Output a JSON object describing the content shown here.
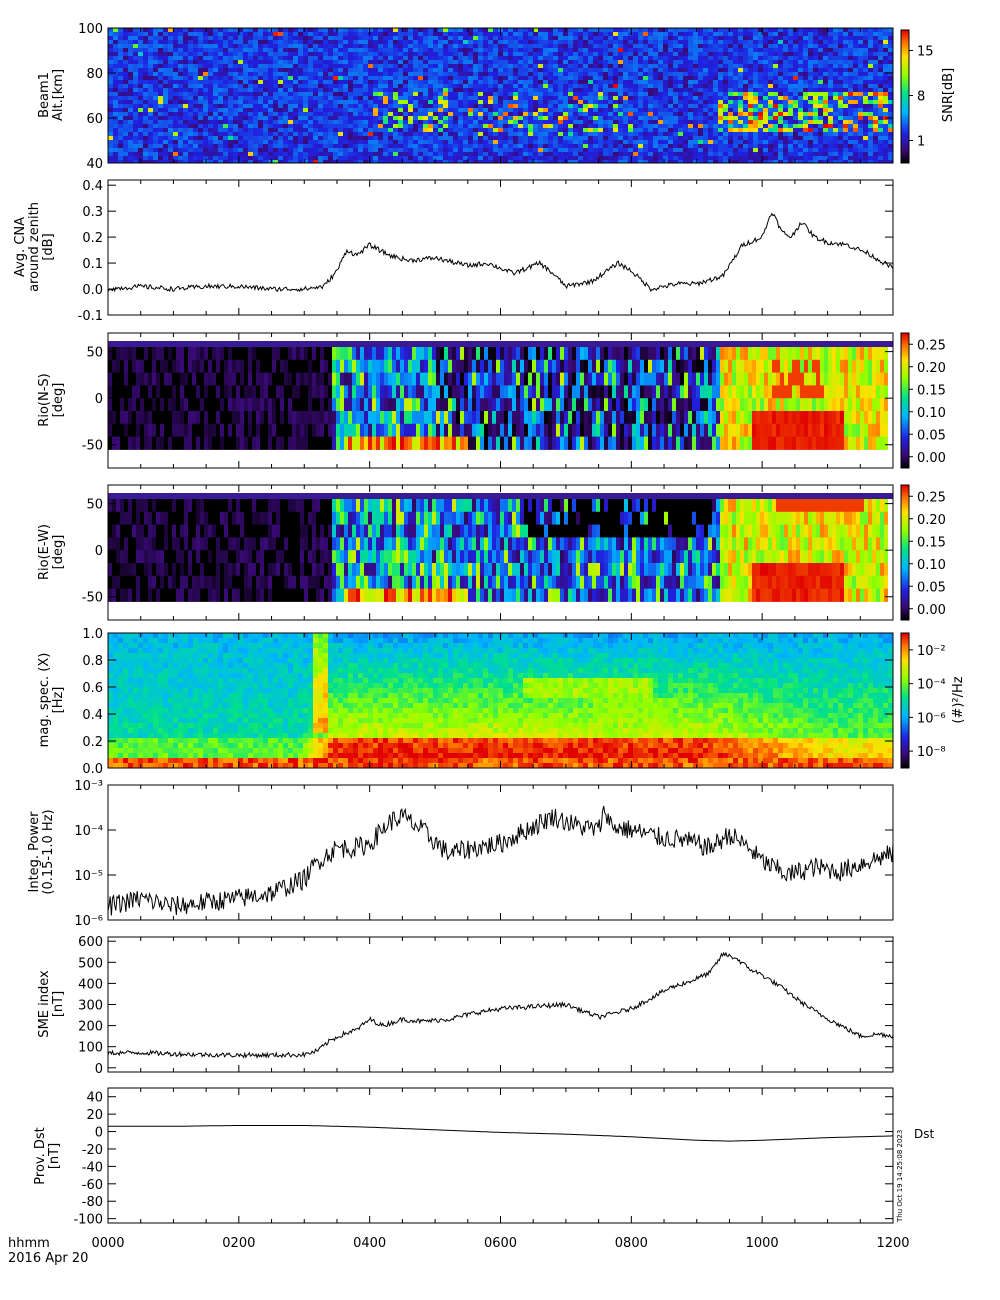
{
  "figure": {
    "time_label": "hhmm",
    "date_label": "2016 Apr 20",
    "stamp": "Thu Oct 19 14:25:08 2023",
    "x_ticks": [
      "0000",
      "0200",
      "0400",
      "0600",
      "0800",
      "1000",
      "1200"
    ],
    "x_range_hours": [
      0,
      12
    ]
  },
  "chart_data": [
    {
      "id": "beam1",
      "type": "heatmap",
      "ylabel_lines": [
        "Beam1",
        "Alt.[km]"
      ],
      "ylim": [
        40,
        100
      ],
      "yticks": [
        40,
        60,
        80,
        100
      ],
      "colorbar": {
        "label": "SNR[dB]",
        "ticks": [
          "1",
          "8",
          "15"
        ],
        "range": [
          1,
          15
        ]
      },
      "colors": {
        "background": "#2a2ab0"
      }
    },
    {
      "id": "cna",
      "type": "line",
      "ylabel_lines": [
        "Avg. CNA",
        "around zenith",
        "[dB]"
      ],
      "ylim": [
        -0.1,
        0.42
      ],
      "yticks": [
        "-0.1",
        "0.0",
        "0.1",
        "0.2",
        "0.3",
        "0.4"
      ],
      "x": [
        0,
        0.5,
        1,
        1.5,
        2,
        2.5,
        3,
        3.3,
        3.5,
        3.65,
        3.8,
        4.0,
        4.3,
        4.6,
        5.0,
        5.5,
        5.8,
        6.2,
        6.6,
        6.8,
        7.0,
        7.4,
        7.8,
        8.0,
        8.3,
        8.7,
        9.0,
        9.4,
        9.7,
        10.0,
        10.15,
        10.3,
        10.45,
        10.6,
        10.8,
        11.0,
        11.3,
        11.6,
        11.8,
        12.0
      ],
      "values": [
        0.0,
        0.01,
        0.0,
        0.01,
        0.01,
        0.0,
        0.0,
        0.01,
        0.07,
        0.15,
        0.13,
        0.17,
        0.13,
        0.11,
        0.12,
        0.09,
        0.1,
        0.06,
        0.1,
        0.06,
        0.01,
        0.03,
        0.1,
        0.07,
        0.0,
        0.02,
        0.02,
        0.05,
        0.17,
        0.2,
        0.3,
        0.22,
        0.2,
        0.26,
        0.2,
        0.18,
        0.17,
        0.14,
        0.11,
        0.08
      ]
    },
    {
      "id": "rio_ns",
      "type": "heatmap",
      "ylabel_lines": [
        "Rio(N-S)",
        "[deg]"
      ],
      "ylim": [
        -75,
        70
      ],
      "yticks": [
        "-50",
        "0",
        "50"
      ],
      "colorbar": {
        "ticks": [
          "0.00",
          "0.05",
          "0.10",
          "0.15",
          "0.20",
          "0.25"
        ],
        "range": [
          0,
          0.29
        ]
      }
    },
    {
      "id": "rio_ew",
      "type": "heatmap",
      "ylabel_lines": [
        "Rio(E-W)",
        "[deg]"
      ],
      "ylim": [
        -75,
        70
      ],
      "yticks": [
        "-50",
        "0",
        "50"
      ],
      "colorbar": {
        "ticks": [
          "0.00",
          "0.05",
          "0.10",
          "0.15",
          "0.20",
          "0.25"
        ],
        "range": [
          0,
          0.29
        ]
      }
    },
    {
      "id": "mag_spec",
      "type": "heatmap",
      "ylabel_lines": [
        "mag. spec. (X)",
        "[Hz]"
      ],
      "ylim": [
        0,
        1.0
      ],
      "yticks": [
        "0.0",
        "0.2",
        "0.4",
        "0.6",
        "0.8",
        "1.0"
      ],
      "colorbar": {
        "label": "(#)²/Hz",
        "ticks": [
          "10⁻⁸",
          "10⁻⁶",
          "10⁻⁴",
          "10⁻²"
        ]
      }
    },
    {
      "id": "integ_power",
      "type": "line",
      "scale": "log",
      "ylabel_lines": [
        "Integ. Power",
        "(0.15-1.0 Hz)"
      ],
      "ylim": [
        1e-06,
        0.001
      ],
      "yticks": [
        "10⁻⁶",
        "10⁻⁵",
        "10⁻⁴",
        "10⁻³"
      ],
      "x": [
        0,
        0.5,
        1,
        1.5,
        2,
        2.5,
        3,
        3.2,
        3.5,
        3.8,
        4.0,
        4.3,
        4.5,
        4.8,
        5.2,
        5.6,
        6.0,
        6.4,
        6.8,
        7.2,
        7.5,
        7.6,
        7.7,
        8.0,
        8.4,
        8.8,
        9.2,
        9.5,
        9.8,
        10.0,
        10.4,
        10.8,
        11.2,
        11.6,
        12.0
      ],
      "values": [
        2e-06,
        3e-06,
        2e-06,
        2.5e-06,
        3e-06,
        4e-06,
        8e-06,
        2e-05,
        4e-05,
        4e-05,
        5e-05,
        0.00015,
        0.0002,
        0.0001,
        3e-05,
        4e-05,
        5e-05,
        0.0001,
        0.0002,
        0.00012,
        0.0001,
        0.0003,
        0.00012,
        0.0001,
        7e-05,
        6e-05,
        4e-05,
        8e-05,
        4e-05,
        2e-05,
        1e-05,
        1.5e-05,
        1.2e-05,
        2e-05,
        3e-05
      ]
    },
    {
      "id": "sme",
      "type": "line",
      "ylabel_lines": [
        "SME index",
        "[nT]"
      ],
      "ylim": [
        -20,
        620
      ],
      "yticks": [
        "0",
        "100",
        "200",
        "300",
        "400",
        "500",
        "600"
      ],
      "x": [
        0,
        0.5,
        1,
        1.5,
        2,
        2.5,
        3,
        3.2,
        3.4,
        3.6,
        3.8,
        4.0,
        4.2,
        4.5,
        4.8,
        5.2,
        5.6,
        6.0,
        6.5,
        7.0,
        7.5,
        8.0,
        8.3,
        8.6,
        8.9,
        9.2,
        9.4,
        9.6,
        9.8,
        10.0,
        10.3,
        10.6,
        10.9,
        11.2,
        11.5,
        11.8,
        12.0
      ],
      "values": [
        70,
        72,
        66,
        62,
        60,
        60,
        62,
        80,
        130,
        160,
        180,
        230,
        200,
        230,
        220,
        230,
        260,
        280,
        290,
        300,
        240,
        280,
        330,
        380,
        410,
        450,
        540,
        520,
        470,
        440,
        380,
        310,
        250,
        200,
        150,
        160,
        150
      ]
    },
    {
      "id": "dst",
      "type": "line",
      "ylabel_lines": [
        "Prov. Dst",
        "[nT]"
      ],
      "ylim": [
        -105,
        50
      ],
      "yticks": [
        "-100",
        "-80",
        "-60",
        "-40",
        "-20",
        "0",
        "20",
        "40"
      ],
      "legend": "Dst",
      "x": [
        0,
        1,
        2,
        3,
        4,
        5,
        6,
        7,
        8,
        9,
        9.5,
        10,
        11,
        12
      ],
      "values": [
        6,
        6,
        7,
        7,
        5,
        2,
        -1,
        -3,
        -6,
        -10,
        -11,
        -10,
        -7,
        -5
      ]
    }
  ]
}
